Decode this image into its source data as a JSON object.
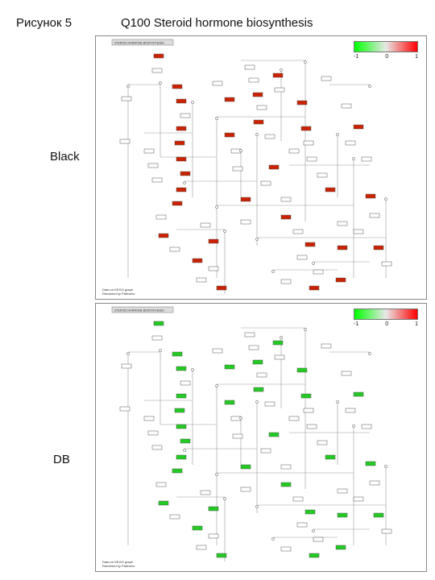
{
  "figure": {
    "label": "Рисунок 5",
    "title": "Q100 Steroid hormone biosynthesis"
  },
  "legend": {
    "min": "-1",
    "mid": "0",
    "max": "1",
    "low_color": "#00ff00",
    "mid_color": "#e8e8e8",
    "high_color": "#ff0000"
  },
  "panels": [
    {
      "group": "Black",
      "highlight_color": "#cc2200",
      "map_header": "STEROID HORMONE BIOSYNTHESIS",
      "footer": [
        "Data on KEGG graph",
        "Rendered by Pathview"
      ]
    },
    {
      "group": "DB",
      "highlight_color": "#22cc22",
      "map_header": "STEROID HORMONE BIOSYNTHESIS",
      "footer": [
        "Data on KEGG graph",
        "Rendered by Pathview"
      ]
    }
  ]
}
